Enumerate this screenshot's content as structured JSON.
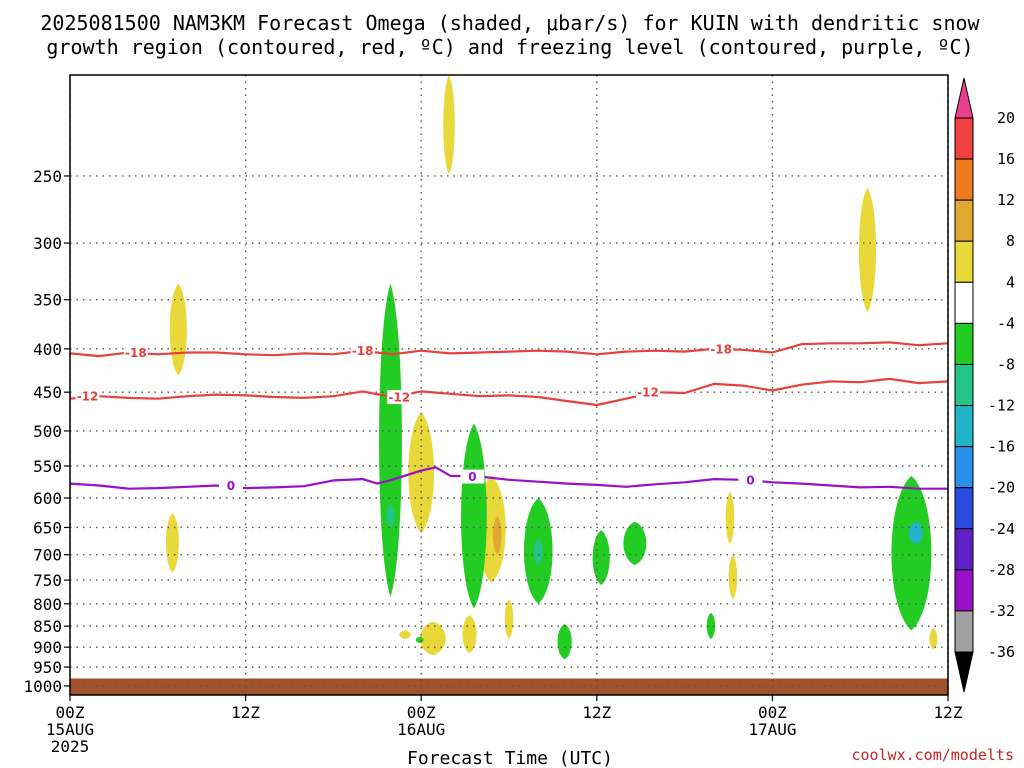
{
  "title_line1": "2025081500 NAM3KM Forecast Omega (shaded, μbar/s) for KUIN with dendritic snow",
  "title_line2": "growth region (contoured, red, ºC) and freezing level (contoured, purple, ºC)",
  "credit": "coolwx.com/modelts",
  "colors": {
    "dgz_line": "#e8403c",
    "freezing_line": "#9a10c8",
    "ground": "#a0522d",
    "grid": "#555555"
  },
  "chart_data": {
    "type": "area",
    "title": "2025081500 NAM3KM Forecast Omega (shaded, μbar/s) for KUIN with dendritic snow growth region (contoured, red, ºC) and freezing level (contoured, purple, ºC)",
    "xlabel": "Forecast Time (UTC)",
    "ylabel": "",
    "x_range_hours": [
      0,
      60
    ],
    "y_range_hpa": [
      1025,
      190
    ],
    "y_scale": "log-pressure",
    "y_ticks": [
      250,
      300,
      350,
      400,
      450,
      500,
      550,
      600,
      650,
      700,
      750,
      800,
      850,
      900,
      950,
      1000
    ],
    "x_ticks": [
      {
        "hour": 0,
        "l1": "00Z",
        "l2": "15AUG",
        "l3": "2025"
      },
      {
        "hour": 12,
        "l1": "12Z",
        "l2": "",
        "l3": ""
      },
      {
        "hour": 24,
        "l1": "00Z",
        "l2": "16AUG",
        "l3": ""
      },
      {
        "hour": 36,
        "l1": "12Z",
        "l2": "",
        "l3": ""
      },
      {
        "hour": 48,
        "l1": "00Z",
        "l2": "17AUG",
        "l3": ""
      },
      {
        "hour": 60,
        "l1": "12Z",
        "l2": "",
        "l3": ""
      }
    ],
    "grid": true,
    "colorbar": {
      "labels": [
        "20",
        "16",
        "12",
        "8",
        "4",
        "-4",
        "-8",
        "-12",
        "-16",
        "-20",
        "-24",
        "-28",
        "-32",
        "-36"
      ],
      "colors": [
        "#e8408c",
        "#f04040",
        "#ee7a1e",
        "#e0a830",
        "#e8d83a",
        "#ffffff",
        "#22cc22",
        "#22c488",
        "#22b4c8",
        "#2a90e8",
        "#2a4ae0",
        "#6020c8",
        "#9a10c8",
        "#a0a0a0",
        "#000000"
      ]
    },
    "contours": [
      {
        "name": "-18",
        "color": "#e8403c",
        "label_at_hours": [
          4.5,
          20,
          44.5
        ],
        "points": [
          [
            0,
            405
          ],
          [
            2,
            408
          ],
          [
            4,
            404
          ],
          [
            6,
            406
          ],
          [
            8,
            404
          ],
          [
            10,
            404
          ],
          [
            12,
            406
          ],
          [
            14,
            407
          ],
          [
            16,
            405
          ],
          [
            18,
            406
          ],
          [
            20,
            402
          ],
          [
            22,
            406
          ],
          [
            24,
            402
          ],
          [
            26,
            405
          ],
          [
            28,
            404
          ],
          [
            30,
            403
          ],
          [
            32,
            402
          ],
          [
            34,
            403
          ],
          [
            36,
            406
          ],
          [
            38,
            403
          ],
          [
            40,
            402
          ],
          [
            42,
            403
          ],
          [
            44,
            400
          ],
          [
            46,
            401
          ],
          [
            48,
            404
          ],
          [
            50,
            395
          ],
          [
            52,
            394
          ],
          [
            54,
            394
          ],
          [
            56,
            393
          ],
          [
            58,
            396
          ],
          [
            60,
            394
          ]
        ]
      },
      {
        "name": "-12",
        "color": "#e8403c",
        "label_at_hours": [
          1.2,
          22.5,
          39.5
        ],
        "points": [
          [
            0,
            458
          ],
          [
            2,
            455
          ],
          [
            4,
            457
          ],
          [
            6,
            458
          ],
          [
            8,
            455
          ],
          [
            10,
            453
          ],
          [
            12,
            454
          ],
          [
            14,
            456
          ],
          [
            16,
            457
          ],
          [
            18,
            455
          ],
          [
            20,
            449
          ],
          [
            22,
            456
          ],
          [
            24,
            449
          ],
          [
            26,
            452
          ],
          [
            28,
            455
          ],
          [
            30,
            454
          ],
          [
            32,
            456
          ],
          [
            34,
            461
          ],
          [
            36,
            466
          ],
          [
            38,
            458
          ],
          [
            40,
            450
          ],
          [
            42,
            451
          ],
          [
            44,
            440
          ],
          [
            46,
            442
          ],
          [
            48,
            448
          ],
          [
            50,
            441
          ],
          [
            52,
            437
          ],
          [
            54,
            438
          ],
          [
            56,
            434
          ],
          [
            58,
            439
          ],
          [
            60,
            437
          ]
        ]
      },
      {
        "name": "0",
        "color": "#9a10c8",
        "label_at_hours": [
          11,
          27.5,
          46.5
        ],
        "points": [
          [
            0,
            577
          ],
          [
            2,
            580
          ],
          [
            4,
            585
          ],
          [
            6,
            584
          ],
          [
            8,
            582
          ],
          [
            10,
            580
          ],
          [
            12,
            584
          ],
          [
            14,
            583
          ],
          [
            16,
            581
          ],
          [
            18,
            572
          ],
          [
            20,
            570
          ],
          [
            21,
            577
          ],
          [
            22,
            571
          ],
          [
            24,
            557
          ],
          [
            25,
            552
          ],
          [
            26,
            565
          ],
          [
            28,
            566
          ],
          [
            30,
            571
          ],
          [
            32,
            574
          ],
          [
            34,
            577
          ],
          [
            36,
            579
          ],
          [
            38,
            582
          ],
          [
            40,
            578
          ],
          [
            42,
            575
          ],
          [
            44,
            570
          ],
          [
            46,
            571
          ],
          [
            48,
            575
          ],
          [
            50,
            577
          ],
          [
            52,
            580
          ],
          [
            54,
            583
          ],
          [
            56,
            582
          ],
          [
            58,
            585
          ],
          [
            60,
            585
          ]
        ]
      }
    ],
    "omega_regions": [
      {
        "series": "4 to 8",
        "color": "#e8d83a",
        "x": 7.4,
        "p_top": 335,
        "p_bottom": 430,
        "half_width_h": 0.6
      },
      {
        "series": "4 to 8",
        "color": "#e8d83a",
        "x": 7.0,
        "p_top": 625,
        "p_bottom": 735,
        "half_width_h": 0.45
      },
      {
        "series": "4 to 8",
        "color": "#e8d83a",
        "x": 25.9,
        "p_top": 190,
        "p_bottom": 249,
        "half_width_h": 0.4
      },
      {
        "series": "4 to 8",
        "color": "#e8d83a",
        "x": 54.5,
        "p_top": 258,
        "p_bottom": 362,
        "half_width_h": 0.6
      },
      {
        "series": "4 to 8",
        "color": "#e8d83a",
        "x": 24.0,
        "p_top": 475,
        "p_bottom": 660,
        "half_width_h": 0.9
      },
      {
        "series": "4 to 8",
        "color": "#e8d83a",
        "x": 28.8,
        "p_top": 565,
        "p_bottom": 755,
        "half_width_h": 1.0
      },
      {
        "series": "4 to 8",
        "color": "#e8d83a",
        "x": 22.9,
        "p_top": 860,
        "p_bottom": 880,
        "half_width_h": 0.4
      },
      {
        "series": "4 to 8",
        "color": "#e8d83a",
        "x": 24.8,
        "p_top": 840,
        "p_bottom": 920,
        "half_width_h": 0.9
      },
      {
        "series": "4 to 8",
        "color": "#e8d83a",
        "x": 27.3,
        "p_top": 825,
        "p_bottom": 915,
        "half_width_h": 0.5
      },
      {
        "series": "4 to 8",
        "color": "#e8d83a",
        "x": 30.0,
        "p_top": 790,
        "p_bottom": 880,
        "half_width_h": 0.3
      },
      {
        "series": "4 to 8",
        "color": "#e8d83a",
        "x": 45.1,
        "p_top": 590,
        "p_bottom": 680,
        "half_width_h": 0.3
      },
      {
        "series": "4 to 8",
        "color": "#e8d83a",
        "x": 45.3,
        "p_top": 700,
        "p_bottom": 790,
        "half_width_h": 0.3
      },
      {
        "series": "4 to 8",
        "color": "#e8d83a",
        "x": 59.0,
        "p_top": 855,
        "p_bottom": 905,
        "half_width_h": 0.2
      },
      {
        "series": "8 to 12",
        "color": "#e0a830",
        "x": 29.2,
        "p_top": 630,
        "p_bottom": 700,
        "half_width_h": 0.3
      },
      {
        "series": "-8 to -4",
        "color": "#22cc22",
        "x": 21.9,
        "p_top": 335,
        "p_bottom": 785,
        "half_width_h": 0.8
      },
      {
        "series": "-8 to -4",
        "color": "#22cc22",
        "x": 23.9,
        "p_top": 875,
        "p_bottom": 890,
        "half_width_h": 0.0
      },
      {
        "series": "-8 to -4",
        "color": "#22cc22",
        "x": 27.6,
        "p_top": 490,
        "p_bottom": 810,
        "half_width_h": 0.9
      },
      {
        "series": "-8 to -4",
        "color": "#22cc22",
        "x": 32.0,
        "p_top": 600,
        "p_bottom": 800,
        "half_width_h": 1.0
      },
      {
        "series": "-8 to -4",
        "color": "#22cc22",
        "x": 33.8,
        "p_top": 845,
        "p_bottom": 930,
        "half_width_h": 0.5
      },
      {
        "series": "-8 to -4",
        "color": "#22cc22",
        "x": 36.3,
        "p_top": 655,
        "p_bottom": 760,
        "half_width_h": 0.6
      },
      {
        "series": "-8 to -4",
        "color": "#22cc22",
        "x": 38.6,
        "p_top": 640,
        "p_bottom": 720,
        "half_width_h": 0.8
      },
      {
        "series": "-8 to -4",
        "color": "#22cc22",
        "x": 43.8,
        "p_top": 820,
        "p_bottom": 880,
        "half_width_h": 0.3
      },
      {
        "series": "-8 to -4",
        "color": "#22cc22",
        "x": 57.5,
        "p_top": 565,
        "p_bottom": 860,
        "half_width_h": 1.4
      },
      {
        "series": "-12 to -8",
        "color": "#22c488",
        "x": 21.9,
        "p_top": 610,
        "p_bottom": 650,
        "half_width_h": 0.2
      },
      {
        "series": "-12 to -8",
        "color": "#22c488",
        "x": 32.0,
        "p_top": 670,
        "p_bottom": 720,
        "half_width_h": 0.3
      },
      {
        "series": "-16 to -12",
        "color": "#22b4c8",
        "x": 57.8,
        "p_top": 640,
        "p_bottom": 680,
        "half_width_h": 0.5
      }
    ]
  }
}
